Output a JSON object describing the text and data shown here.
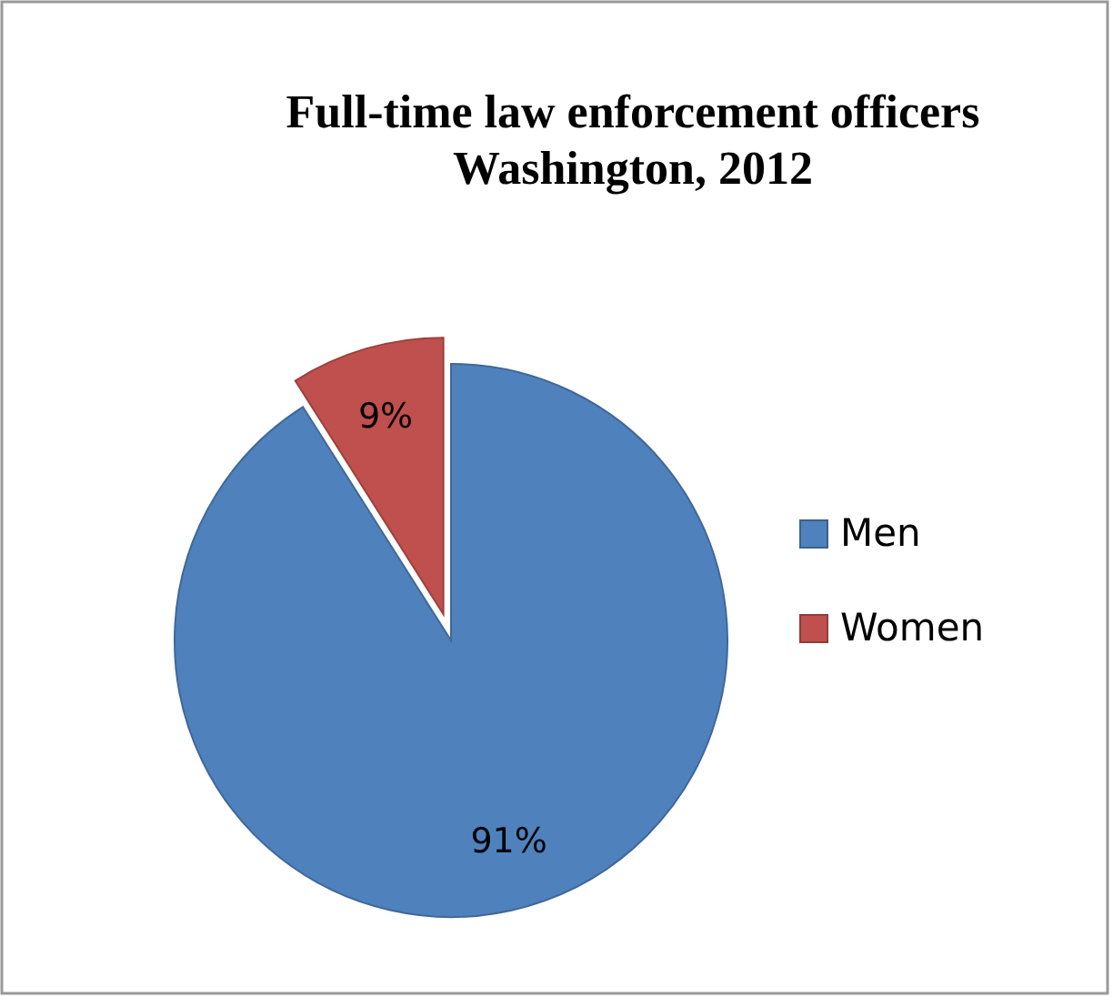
{
  "chart_data": {
    "type": "pie",
    "title": "Full-time law enforcement officers\nWashington, 2012",
    "categories": [
      "Men",
      "Women"
    ],
    "values": [
      91,
      9
    ],
    "colors": [
      "#4f81bd",
      "#c0504d"
    ],
    "value_labels": [
      "91%",
      "9%"
    ],
    "legend": "right"
  }
}
